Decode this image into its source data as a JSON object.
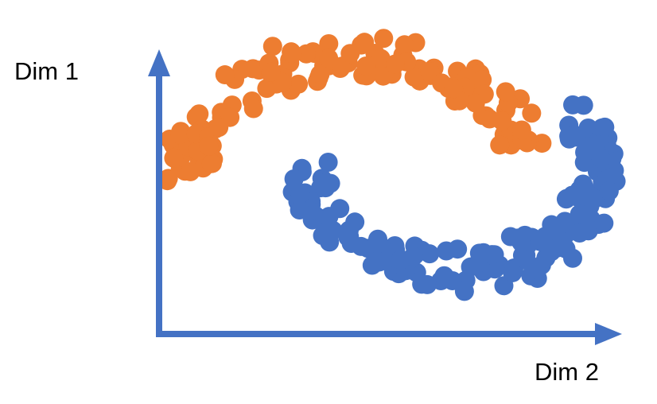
{
  "axes": {
    "vertical_label": "Dim 1",
    "horizontal_label": "Dim 2"
  }
}
